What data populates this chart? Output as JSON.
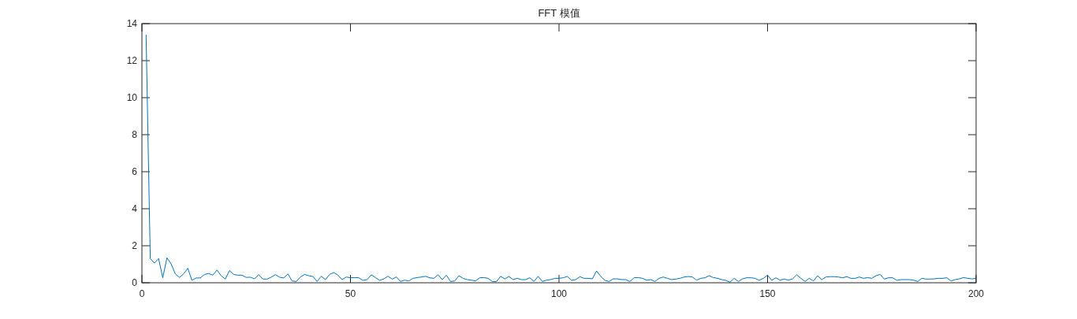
{
  "chart_data": {
    "type": "line",
    "title": "FFT 模值",
    "x": [
      1,
      2,
      3,
      4,
      5,
      6,
      7,
      8,
      9,
      10,
      11,
      12,
      13,
      14,
      15,
      16,
      17,
      18,
      19,
      20,
      21,
      22,
      23,
      24,
      25,
      26,
      27,
      28,
      29,
      30,
      31,
      32,
      33,
      34,
      35,
      36,
      37,
      38,
      39,
      40,
      41,
      42,
      43,
      44,
      45,
      46,
      47,
      48,
      49,
      50,
      51,
      52,
      53,
      54,
      55,
      56,
      57,
      58,
      59,
      60,
      61,
      62,
      63,
      64,
      65,
      66,
      67,
      68,
      69,
      70,
      71,
      72,
      73,
      74,
      75,
      76,
      77,
      78,
      79,
      80,
      81,
      82,
      83,
      84,
      85,
      86,
      87,
      88,
      89,
      90,
      91,
      92,
      93,
      94,
      95,
      96,
      97,
      98,
      99,
      100,
      101,
      102,
      103,
      104,
      105,
      106,
      107,
      108,
      109,
      110,
      111,
      112,
      113,
      114,
      115,
      116,
      117,
      118,
      119,
      120,
      121,
      122,
      123,
      124,
      125,
      126,
      127,
      128,
      129,
      130,
      131,
      132,
      133,
      134,
      135,
      136,
      137,
      138,
      139,
      140,
      141,
      142,
      143,
      144,
      145,
      146,
      147,
      148,
      149,
      150,
      151,
      152,
      153,
      154,
      155,
      156,
      157,
      158,
      159,
      160,
      161,
      162,
      163,
      164,
      165,
      166,
      167,
      168,
      169,
      170,
      171,
      172,
      173,
      174,
      175,
      176,
      177,
      178,
      179,
      180,
      181,
      182,
      183,
      184,
      185,
      186,
      187,
      188,
      189,
      190,
      191,
      192,
      193,
      194,
      195,
      196,
      197,
      198,
      199,
      200
    ],
    "series": [
      {
        "color": "#0072bd",
        "values": [
          13.4,
          1.31,
          1.06,
          1.31,
          0.27,
          1.35,
          1.02,
          0.48,
          0.29,
          0.48,
          0.78,
          0.13,
          0.26,
          0.26,
          0.45,
          0.5,
          0.41,
          0.69,
          0.38,
          0.2,
          0.66,
          0.45,
          0.41,
          0.41,
          0.29,
          0.3,
          0.21,
          0.44,
          0.2,
          0.2,
          0.3,
          0.44,
          0.3,
          0.26,
          0.48,
          0.1,
          0.07,
          0.31,
          0.45,
          0.38,
          0.34,
          0.07,
          0.35,
          0.17,
          0.45,
          0.55,
          0.41,
          0.17,
          0.31,
          0.27,
          0.28,
          0.27,
          0.13,
          0.17,
          0.43,
          0.28,
          0.13,
          0.21,
          0.35,
          0.2,
          0.31,
          0.07,
          0.14,
          0.1,
          0.24,
          0.28,
          0.31,
          0.35,
          0.27,
          0.24,
          0.43,
          0.17,
          0.41,
          0.07,
          0.1,
          0.38,
          0.24,
          0.17,
          0.14,
          0.1,
          0.27,
          0.28,
          0.24,
          0.07,
          0.06,
          0.35,
          0.21,
          0.34,
          0.17,
          0.24,
          0.17,
          0.17,
          0.27,
          0.07,
          0.35,
          0.07,
          0.14,
          0.17,
          0.24,
          0.24,
          0.27,
          0.34,
          0.13,
          0.17,
          0.33,
          0.24,
          0.24,
          0.21,
          0.64,
          0.35,
          0.13,
          0.07,
          0.21,
          0.21,
          0.17,
          0.17,
          0.07,
          0.27,
          0.28,
          0.24,
          0.14,
          0.17,
          0.07,
          0.24,
          0.31,
          0.24,
          0.17,
          0.2,
          0.24,
          0.31,
          0.34,
          0.31,
          0.14,
          0.24,
          0.27,
          0.38,
          0.28,
          0.24,
          0.17,
          0.13,
          0.03,
          0.24,
          0.07,
          0.21,
          0.27,
          0.27,
          0.24,
          0.13,
          0.24,
          0.41,
          0.13,
          0.27,
          0.14,
          0.2,
          0.14,
          0.21,
          0.43,
          0.24,
          0.07,
          0.24,
          0.1,
          0.38,
          0.17,
          0.31,
          0.33,
          0.33,
          0.31,
          0.27,
          0.33,
          0.24,
          0.24,
          0.31,
          0.24,
          0.28,
          0.24,
          0.38,
          0.45,
          0.2,
          0.27,
          0.27,
          0.13,
          0.17,
          0.17,
          0.17,
          0.14,
          0.07,
          0.24,
          0.2,
          0.2,
          0.21,
          0.24,
          0.24,
          0.27,
          0.1,
          0.17,
          0.21,
          0.28,
          0.24,
          0.21,
          0.24
        ]
      }
    ],
    "xlim": [
      0,
      200
    ],
    "xticks": [
      0,
      50,
      100,
      150,
      200
    ],
    "ylim": [
      0,
      14
    ],
    "yticks": [
      0,
      2,
      4,
      6,
      8,
      10,
      12,
      14
    ],
    "grid": false
  }
}
